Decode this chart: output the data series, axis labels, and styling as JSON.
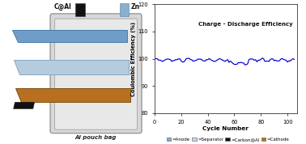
{
  "chart_title": "Charge - Discharge Efficiency",
  "xlabel": "Cycle Number",
  "ylabel": "Coulombic Efficiency (%)",
  "ylim": [
    80,
    120
  ],
  "xlim": [
    0,
    107
  ],
  "yticks": [
    80,
    90,
    100,
    110,
    120
  ],
  "xticks": [
    0,
    20,
    40,
    60,
    80,
    100
  ],
  "line_color": "#0000CC",
  "bg_color": "#ffffff",
  "legend_labels": [
    "=Anode",
    "=Separator",
    "=Carbon@Al",
    "=Cathode"
  ],
  "legend_colors": [
    "#8aabcc",
    "#c5d8e8",
    "#111111",
    "#b87020"
  ],
  "pouch_bg": "#d8d8d8",
  "pouch_edge": "#999999",
  "zn_foil_color": "#6e9ec8",
  "zn_foil_edge": "#4a7aaa",
  "membrane_color": "#b5ccdf",
  "membrane_edge": "#88a8c0",
  "cathode_color": "#b87020",
  "cathode_edge": "#805010",
  "black_tab_color": "#111111",
  "blue_tab_color": "#8ab0cc"
}
